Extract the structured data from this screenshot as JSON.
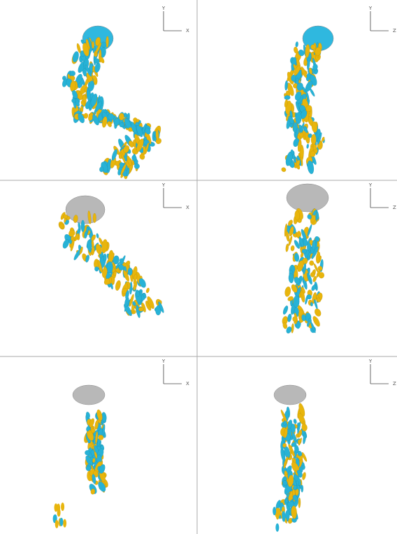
{
  "panels": [
    {
      "vertical_axis": "Y",
      "horizontal_axis": "X"
    },
    {
      "vertical_axis": "Y",
      "horizontal_axis": "Z"
    },
    {
      "vertical_axis": "Y",
      "horizontal_axis": "X"
    },
    {
      "vertical_axis": "Y",
      "horizontal_axis": "Z"
    },
    {
      "vertical_axis": "Y",
      "horizontal_axis": "X"
    },
    {
      "vertical_axis": "Y",
      "horizontal_axis": "Z"
    }
  ]
}
